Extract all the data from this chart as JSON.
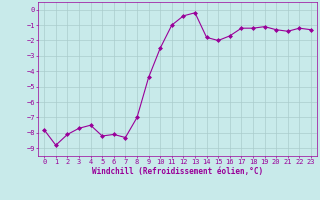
{
  "x": [
    0,
    1,
    2,
    3,
    4,
    5,
    6,
    7,
    8,
    9,
    10,
    11,
    12,
    13,
    14,
    15,
    16,
    17,
    18,
    19,
    20,
    21,
    22,
    23
  ],
  "y": [
    -7.8,
    -8.8,
    -8.1,
    -7.7,
    -7.5,
    -8.2,
    -8.1,
    -8.3,
    -7.0,
    -4.4,
    -2.5,
    -1.0,
    -0.4,
    -0.2,
    -1.8,
    -2.0,
    -1.7,
    -1.2,
    -1.2,
    -1.1,
    -1.3,
    -1.4,
    -1.2,
    -1.3
  ],
  "xlabel": "Windchill (Refroidissement éolien,°C)",
  "ylim": [
    -9.5,
    0.5
  ],
  "xlim": [
    -0.5,
    23.5
  ],
  "yticks": [
    0,
    -1,
    -2,
    -3,
    -4,
    -5,
    -6,
    -7,
    -8,
    -9
  ],
  "xticks": [
    0,
    1,
    2,
    3,
    4,
    5,
    6,
    7,
    8,
    9,
    10,
    11,
    12,
    13,
    14,
    15,
    16,
    17,
    18,
    19,
    20,
    21,
    22,
    23
  ],
  "line_color": "#990099",
  "marker": "D",
  "marker_size": 2,
  "background_color": "#c8eaea",
  "grid_color": "#aacccc",
  "tick_color": "#990099",
  "label_color": "#990099",
  "font_family": "monospace",
  "tick_fontsize": 5,
  "xlabel_fontsize": 5.5
}
